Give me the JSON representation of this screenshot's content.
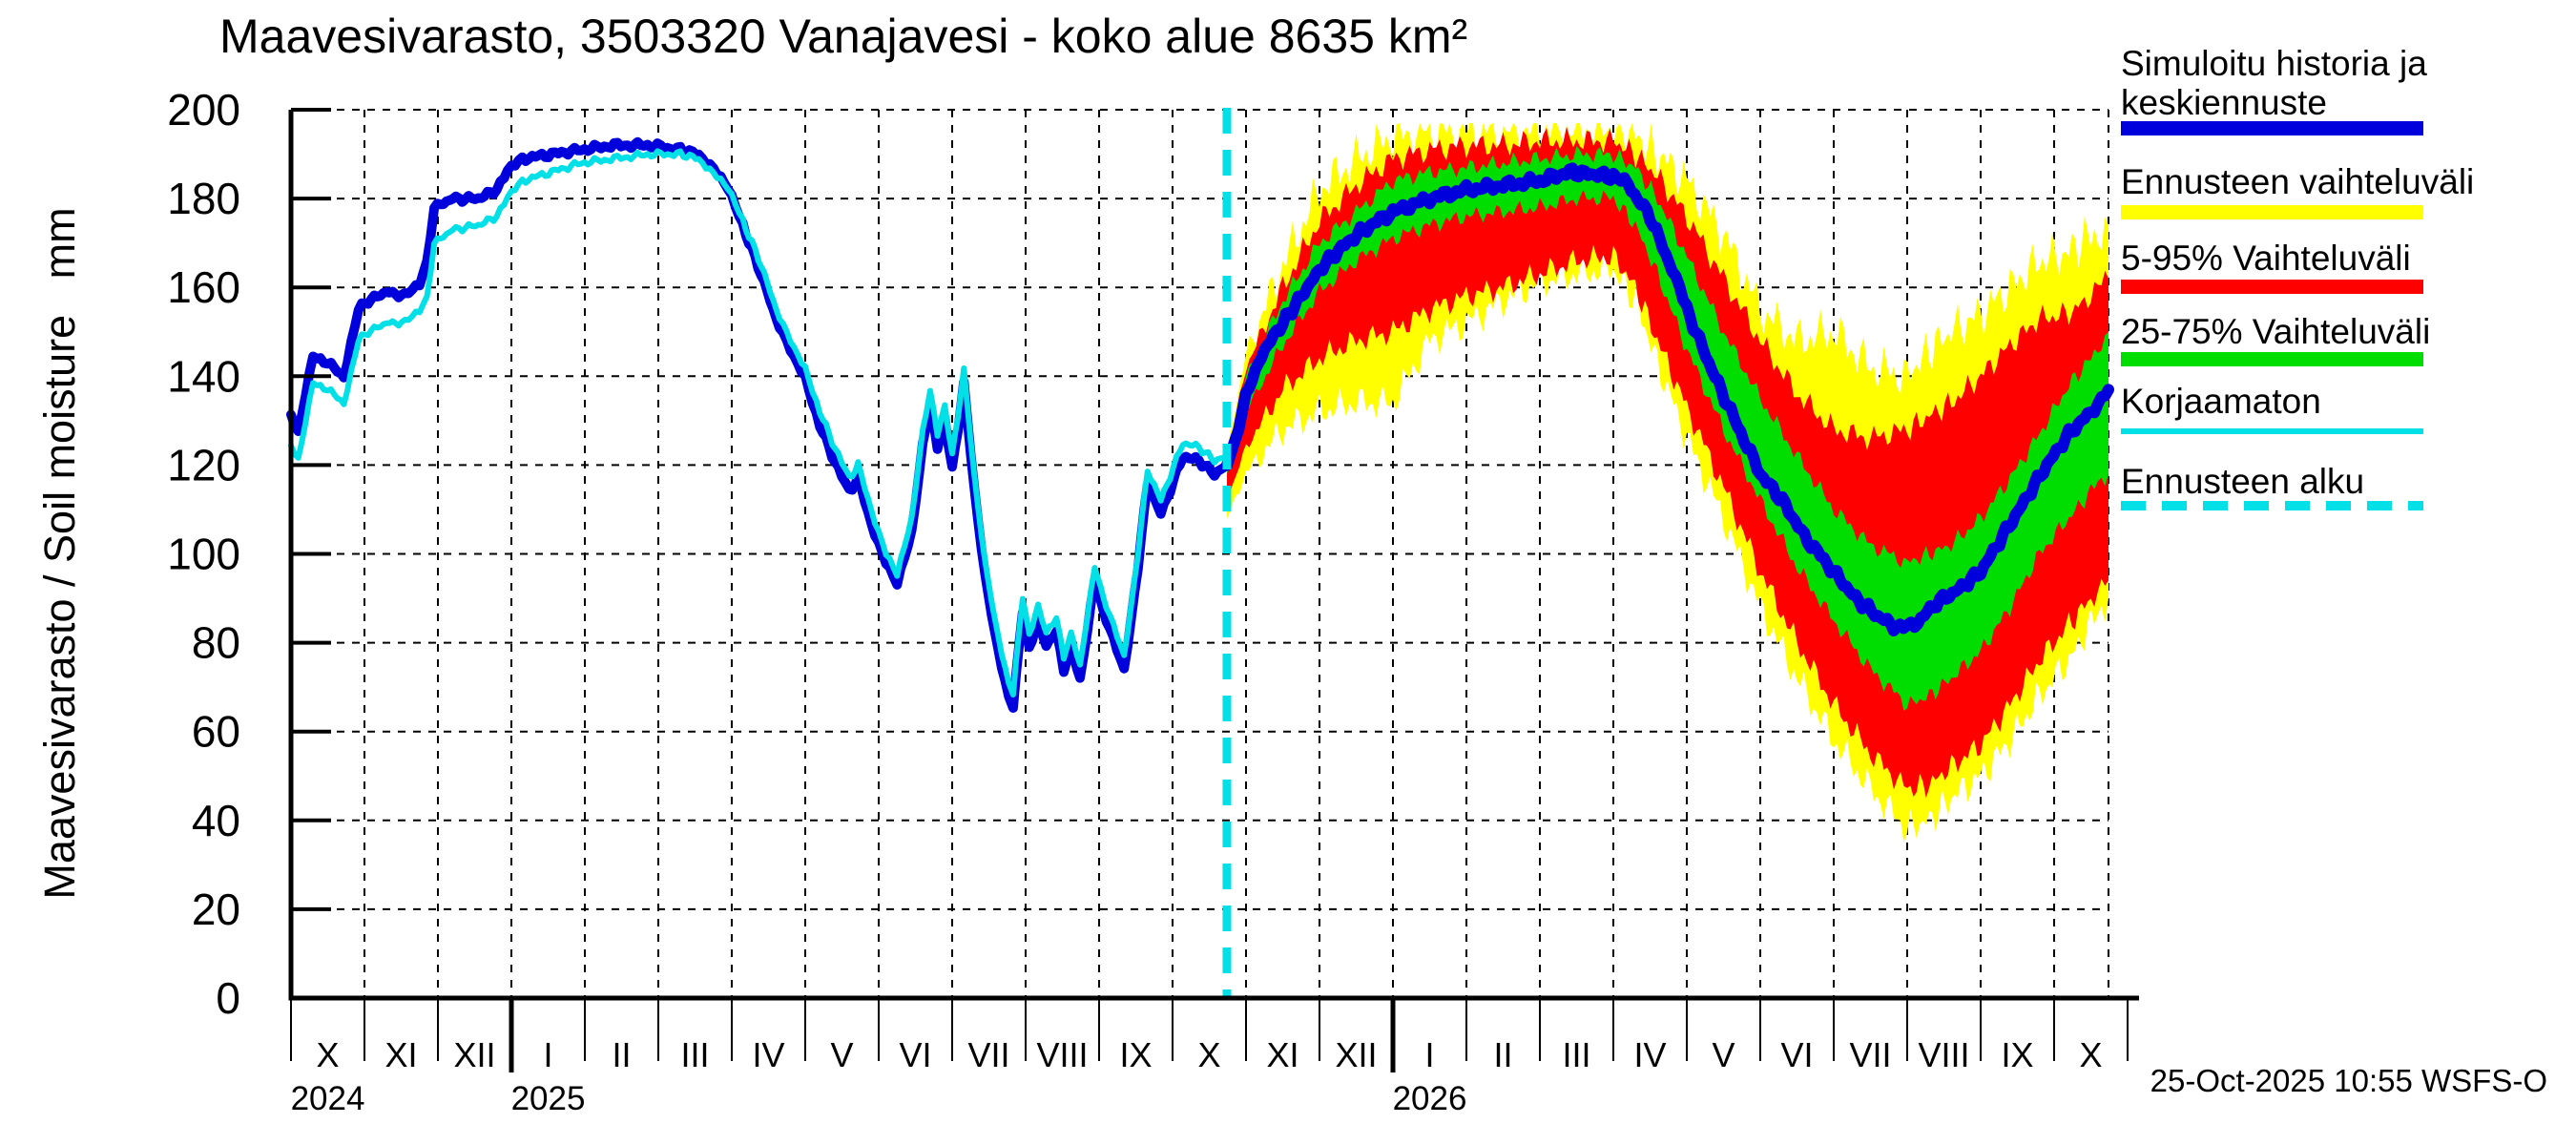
{
  "title": "Maavesivarasto, 3503320 Vanajavesi - koko alue 8635 km²",
  "timestamp": "25-Oct-2025 10:55 WSFS-O",
  "y_axis": {
    "label": "Maavesivarasto / Soil moisture   mm",
    "ticks": [
      0,
      20,
      40,
      60,
      80,
      100,
      120,
      140,
      160,
      180,
      200
    ]
  },
  "x_axis": {
    "month_labels": [
      "X",
      "XI",
      "XII",
      "I",
      "II",
      "III",
      "IV",
      "V",
      "VI",
      "VII",
      "VIII",
      "IX",
      "X",
      "XI",
      "XII",
      "I",
      "II",
      "III",
      "IV",
      "V",
      "VI",
      "VII",
      "VIII",
      "IX",
      "X"
    ],
    "year_labels": [
      {
        "text": "2024",
        "month_index": 0
      },
      {
        "text": "2025",
        "month_index": 3
      },
      {
        "text": "2026",
        "month_index": 15
      }
    ]
  },
  "legend": {
    "items": [
      {
        "line1": "Simuloitu historia ja",
        "line2": "keskiennuste",
        "swatch": "blue-thick"
      },
      {
        "line1": "Ennusteen vaihteluväli",
        "line2": "",
        "swatch": "yellow-thick"
      },
      {
        "line1": "5-95% Vaihteluväli",
        "line2": "",
        "swatch": "red-thick"
      },
      {
        "line1": "25-75% Vaihteluväli",
        "line2": "",
        "swatch": "green-thick"
      },
      {
        "line1": "Korjaamaton",
        "line2": "",
        "swatch": "cyan-thin"
      },
      {
        "line1": "Ennusteen alku",
        "line2": "",
        "swatch": "cyan-dashed"
      }
    ]
  },
  "colors": {
    "simulated_history": "#0000dd",
    "uncorrected": "#00e0e6",
    "band_min_max": "#ffff00",
    "band_5_95": "#ff0000",
    "band_25_75": "#00dd00",
    "forecast_start_line": "#00e0e6",
    "axis": "#000000",
    "background": "#ffffff"
  },
  "chart_data": {
    "type": "area",
    "title": "Maavesivarasto, 3503320 Vanajavesi - koko alue 8635 km²",
    "ylabel": "Maavesivarasto / Soil moisture  mm",
    "ylim": [
      0,
      200
    ],
    "x_unit": "months since 1 Oct 2024",
    "x_range_months": [
      0,
      25
    ],
    "grid": "dashed every month and every 20 mm",
    "legend_position": "right",
    "forecast_start_month": 12.74,
    "data_end_month": 24.74,
    "series": [
      {
        "name": "Simuloitu historia ja keskiennuste (history)",
        "points": [
          [
            0,
            131
          ],
          [
            0.1,
            127
          ],
          [
            0.3,
            145
          ],
          [
            0.5,
            143
          ],
          [
            0.72,
            140
          ],
          [
            0.92,
            155
          ],
          [
            1.05,
            157
          ],
          [
            1.3,
            159
          ],
          [
            1.55,
            158
          ],
          [
            1.75,
            161
          ],
          [
            1.85,
            166
          ],
          [
            1.95,
            178
          ],
          [
            2.2,
            180
          ],
          [
            2.55,
            180
          ],
          [
            2.8,
            182
          ],
          [
            2.95,
            186
          ],
          [
            3.15,
            189
          ],
          [
            3.55,
            190
          ],
          [
            3.95,
            191
          ],
          [
            4.4,
            192
          ],
          [
            4.9,
            192
          ],
          [
            5.3,
            191
          ],
          [
            5.55,
            190
          ],
          [
            5.75,
            187
          ],
          [
            5.95,
            182
          ],
          [
            6.15,
            174
          ],
          [
            6.4,
            163
          ],
          [
            6.65,
            151
          ],
          [
            6.85,
            144
          ],
          [
            7,
            140
          ],
          [
            7.2,
            129
          ],
          [
            7.45,
            119
          ],
          [
            7.6,
            114
          ],
          [
            7.72,
            117
          ],
          [
            7.9,
            107
          ],
          [
            8.1,
            98
          ],
          [
            8.25,
            93
          ],
          [
            8.45,
            105
          ],
          [
            8.6,
            125
          ],
          [
            8.7,
            134
          ],
          [
            8.8,
            124
          ],
          [
            8.9,
            130
          ],
          [
            9,
            119
          ],
          [
            9.16,
            138
          ],
          [
            9.3,
            115
          ],
          [
            9.45,
            95
          ],
          [
            9.58,
            82
          ],
          [
            9.77,
            68
          ],
          [
            9.83,
            66
          ],
          [
            9.96,
            87
          ],
          [
            10.05,
            79
          ],
          [
            10.17,
            85
          ],
          [
            10.28,
            79
          ],
          [
            10.42,
            83
          ],
          [
            10.52,
            74
          ],
          [
            10.62,
            79
          ],
          [
            10.74,
            72
          ],
          [
            10.94,
            94
          ],
          [
            11.1,
            85
          ],
          [
            11.34,
            74
          ],
          [
            11.53,
            97
          ],
          [
            11.66,
            116
          ],
          [
            11.84,
            109
          ],
          [
            12.14,
            122
          ],
          [
            12.36,
            121
          ],
          [
            12.57,
            118
          ],
          [
            12.74,
            120
          ]
        ]
      },
      {
        "name": "Korjaamaton (uncorrected)",
        "points": [
          [
            0,
            124
          ],
          [
            0.1,
            121
          ],
          [
            0.3,
            139
          ],
          [
            0.5,
            137
          ],
          [
            0.72,
            134
          ],
          [
            0.92,
            148
          ],
          [
            1.05,
            150
          ],
          [
            1.3,
            152
          ],
          [
            1.55,
            152
          ],
          [
            1.75,
            155
          ],
          [
            1.85,
            158
          ],
          [
            1.95,
            170
          ],
          [
            2.2,
            173
          ],
          [
            2.55,
            174
          ],
          [
            2.8,
            176
          ],
          [
            2.95,
            180
          ],
          [
            3.15,
            184
          ],
          [
            3.55,
            186
          ],
          [
            3.95,
            188
          ],
          [
            4.4,
            189
          ],
          [
            4.9,
            190
          ],
          [
            5.3,
            190
          ],
          [
            5.55,
            189
          ],
          [
            5.75,
            186
          ],
          [
            5.95,
            182
          ],
          [
            6.15,
            175
          ],
          [
            6.4,
            165
          ],
          [
            6.65,
            153
          ],
          [
            6.85,
            146
          ],
          [
            7,
            142
          ],
          [
            7.2,
            132
          ],
          [
            7.45,
            122
          ],
          [
            7.6,
            117
          ],
          [
            7.72,
            120
          ],
          [
            7.9,
            110
          ],
          [
            8.1,
            100
          ],
          [
            8.25,
            95
          ],
          [
            8.45,
            108
          ],
          [
            8.6,
            128
          ],
          [
            8.7,
            137
          ],
          [
            8.8,
            127
          ],
          [
            8.9,
            133
          ],
          [
            9,
            122
          ],
          [
            9.16,
            141
          ],
          [
            9.3,
            118
          ],
          [
            9.45,
            98
          ],
          [
            9.58,
            85
          ],
          [
            9.77,
            71
          ],
          [
            9.83,
            69
          ],
          [
            9.96,
            90
          ],
          [
            10.05,
            82
          ],
          [
            10.17,
            88
          ],
          [
            10.28,
            82
          ],
          [
            10.42,
            86
          ],
          [
            10.52,
            77
          ],
          [
            10.62,
            82
          ],
          [
            10.74,
            75
          ],
          [
            10.94,
            97
          ],
          [
            11.1,
            88
          ],
          [
            11.34,
            77
          ],
          [
            11.53,
            100
          ],
          [
            11.66,
            119
          ],
          [
            11.84,
            112
          ],
          [
            12.14,
            125
          ],
          [
            12.36,
            124
          ],
          [
            12.57,
            121
          ],
          [
            12.74,
            122
          ]
        ]
      },
      {
        "name": "Keskiennuste (forecast median)",
        "points": [
          [
            12.74,
            120
          ],
          [
            12.9,
            128
          ],
          [
            13,
            136
          ],
          [
            13.25,
            146
          ],
          [
            13.5,
            152
          ],
          [
            13.75,
            158
          ],
          [
            14,
            164
          ],
          [
            14.3,
            169
          ],
          [
            14.6,
            173
          ],
          [
            15,
            177
          ],
          [
            15.5,
            180
          ],
          [
            16,
            182
          ],
          [
            16.5,
            183
          ],
          [
            17,
            184
          ],
          [
            17.4,
            186
          ],
          [
            17.7,
            185.5
          ],
          [
            18,
            185
          ],
          [
            18.2,
            183
          ],
          [
            18.5,
            176
          ],
          [
            18.8,
            164
          ],
          [
            19,
            155
          ],
          [
            19.3,
            143
          ],
          [
            19.6,
            132
          ],
          [
            20,
            118
          ],
          [
            20.3,
            112
          ],
          [
            20.6,
            104
          ],
          [
            21,
            96
          ],
          [
            21.3,
            90
          ],
          [
            21.6,
            86
          ],
          [
            21.9,
            83
          ],
          [
            22.1,
            84
          ],
          [
            22.4,
            89
          ],
          [
            22.7,
            92
          ],
          [
            23,
            96
          ],
          [
            23.3,
            104
          ],
          [
            23.6,
            112
          ],
          [
            23.9,
            120
          ],
          [
            24.2,
            127
          ],
          [
            24.5,
            132
          ],
          [
            24.74,
            137
          ]
        ]
      }
    ],
    "bands": [
      {
        "name": "25-75% Vaihteluväli",
        "points_lo_hi": [
          [
            12.74,
            118,
            121
          ],
          [
            13,
            132,
            140
          ],
          [
            13.5,
            147,
            157
          ],
          [
            14,
            159,
            170
          ],
          [
            14.5,
            166,
            177
          ],
          [
            15,
            171,
            184
          ],
          [
            15.5,
            174,
            186
          ],
          [
            16,
            176,
            187
          ],
          [
            16.5,
            177,
            188
          ],
          [
            17,
            178,
            189
          ],
          [
            17.5,
            180,
            190
          ],
          [
            18,
            180,
            190
          ],
          [
            18.3,
            174,
            187
          ],
          [
            18.6,
            163,
            180
          ],
          [
            19,
            146,
            167
          ],
          [
            19.5,
            128,
            150
          ],
          [
            20,
            112,
            135
          ],
          [
            20.5,
            97,
            122
          ],
          [
            21,
            85,
            110
          ],
          [
            21.5,
            74,
            102
          ],
          [
            22,
            66,
            98
          ],
          [
            22.3,
            68,
            100
          ],
          [
            22.6,
            72,
            102
          ],
          [
            23,
            78,
            108
          ],
          [
            23.4,
            88,
            117
          ],
          [
            23.8,
            100,
            127
          ],
          [
            24.2,
            108,
            138
          ],
          [
            24.5,
            114,
            144
          ],
          [
            24.74,
            118,
            150
          ]
        ]
      },
      {
        "name": "5-95% Vaihteluväli",
        "points_lo_hi": [
          [
            12.74,
            112,
            122
          ],
          [
            13,
            124,
            142
          ],
          [
            13.5,
            137,
            160
          ],
          [
            14,
            144,
            175
          ],
          [
            14.5,
            148,
            183
          ],
          [
            15,
            150,
            189
          ],
          [
            15.5,
            155,
            191
          ],
          [
            16,
            158,
            192
          ],
          [
            16.5,
            160,
            192
          ],
          [
            17,
            163,
            193
          ],
          [
            17.5,
            166,
            193
          ],
          [
            18,
            167,
            193
          ],
          [
            18.3,
            160,
            190
          ],
          [
            18.6,
            148,
            185
          ],
          [
            19,
            133,
            176
          ],
          [
            19.5,
            115,
            162
          ],
          [
            20,
            96,
            148
          ],
          [
            20.5,
            80,
            136
          ],
          [
            21,
            66,
            128
          ],
          [
            21.5,
            55,
            126
          ],
          [
            22,
            47,
            128
          ],
          [
            22.3,
            48,
            131
          ],
          [
            22.6,
            52,
            134
          ],
          [
            23,
            57,
            140
          ],
          [
            23.4,
            66,
            147
          ],
          [
            23.8,
            76,
            153
          ],
          [
            24.2,
            84,
            154
          ],
          [
            24.5,
            90,
            158
          ],
          [
            24.74,
            94,
            162
          ]
        ]
      },
      {
        "name": "Ennusteen vaihteluväli (min-max)",
        "points_lo_hi": [
          [
            12.74,
            108,
            123
          ],
          [
            13,
            118,
            145
          ],
          [
            13.5,
            128,
            165
          ],
          [
            14,
            132,
            182
          ],
          [
            14.5,
            134,
            189
          ],
          [
            15,
            134,
            194
          ],
          [
            15.5,
            148,
            195
          ],
          [
            16,
            152,
            195
          ],
          [
            16.5,
            157,
            195
          ],
          [
            17,
            161,
            196
          ],
          [
            17.5,
            163,
            196
          ],
          [
            18,
            164,
            196
          ],
          [
            18.3,
            157,
            194
          ],
          [
            18.6,
            143,
            190
          ],
          [
            19,
            126,
            184
          ],
          [
            19.5,
            108,
            172
          ],
          [
            20,
            88,
            155
          ],
          [
            20.5,
            72,
            148
          ],
          [
            21,
            58,
            150
          ],
          [
            21.5,
            47,
            142
          ],
          [
            22,
            38,
            140
          ],
          [
            22.3,
            40,
            146
          ],
          [
            22.6,
            45,
            150
          ],
          [
            23,
            50,
            154
          ],
          [
            23.4,
            58,
            160
          ],
          [
            23.8,
            68,
            166
          ],
          [
            24.2,
            76,
            168
          ],
          [
            24.5,
            84,
            172
          ],
          [
            24.74,
            90,
            174
          ]
        ]
      }
    ]
  }
}
